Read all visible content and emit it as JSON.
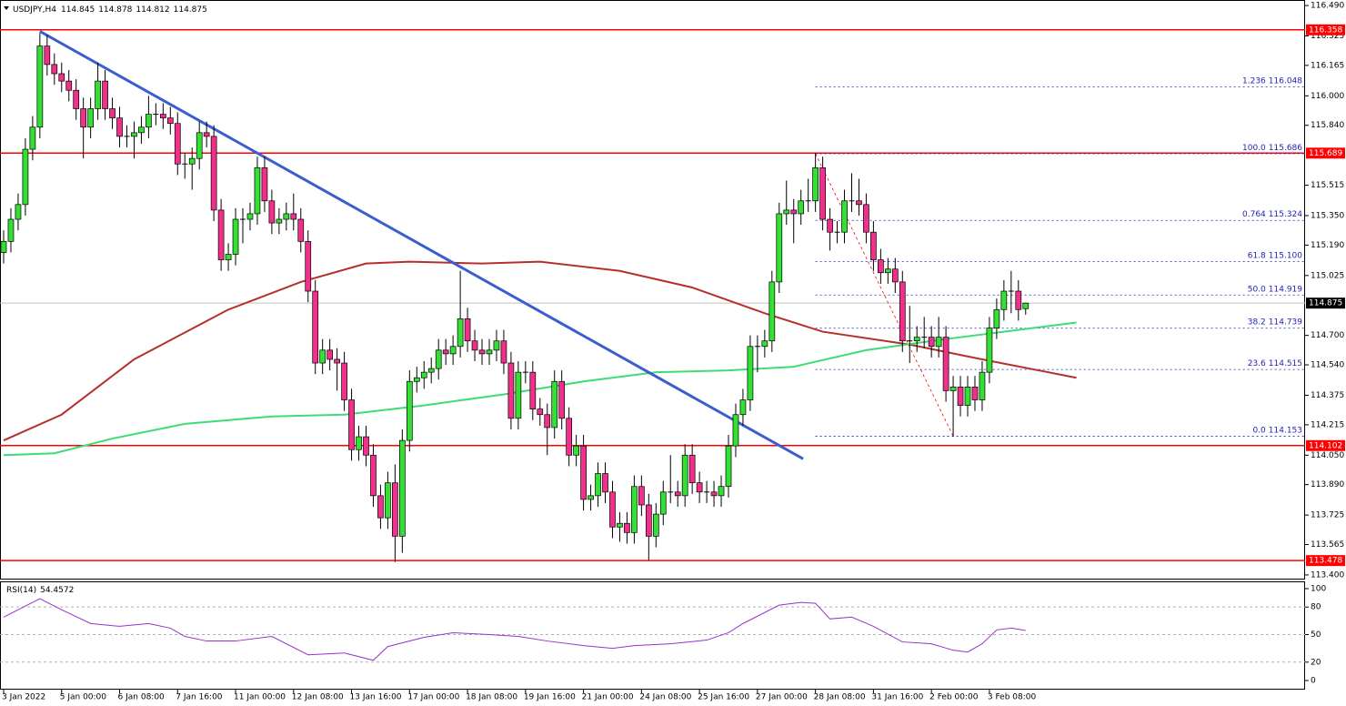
{
  "chart_data": {
    "type": "candlestick",
    "symbol": "USDJPY,H4",
    "up_color": "#33e033",
    "down_color": "#f0308a",
    "ylim": [
      113.38,
      116.515
    ],
    "yticks": [
      {
        "value": 116.49,
        "label": "116.490"
      },
      116.325,
      116.165,
      {
        "value": 116.0,
        "label": "116.000"
      },
      {
        "value": 115.84,
        "label": "115.840"
      },
      115.515,
      {
        "value": 115.35,
        "label": "115.350"
      },
      {
        "value": 115.19,
        "label": "115.190"
      },
      115.025,
      {
        "value": 114.7,
        "label": "114.700"
      },
      {
        "value": 114.54,
        "label": "114.540"
      },
      114.375,
      114.215,
      {
        "value": 114.05,
        "label": "114.050"
      },
      {
        "value": 113.89,
        "label": "113.890"
      },
      113.725,
      113.565,
      {
        "value": 113.4,
        "label": "113.400"
      }
    ],
    "categories": [
      "3 Jan 2022",
      null,
      null,
      null,
      null,
      null,
      null,
      null,
      "5 Jan 00:00",
      null,
      null,
      null,
      null,
      null,
      null,
      null,
      "6 Jan 08:00",
      null,
      null,
      null,
      null,
      null,
      null,
      null,
      "7 Jan 16:00",
      null,
      null,
      null,
      null,
      null,
      null,
      null,
      "11 Jan 00:00",
      null,
      null,
      null,
      null,
      null,
      null,
      null,
      "12 Jan 08:00",
      null,
      null,
      null,
      null,
      null,
      null,
      null,
      "13 Jan 16:00",
      null,
      null,
      null,
      null,
      null,
      null,
      null,
      "17 Jan 00:00",
      null,
      null,
      null,
      null,
      null,
      null,
      null,
      "18 Jan 08:00",
      null,
      null,
      null,
      null,
      null,
      null,
      null,
      "19 Jan 16:00",
      null,
      null,
      null,
      null,
      null,
      null,
      null,
      "21 Jan 00:00",
      null,
      null,
      null,
      null,
      null,
      null,
      null,
      "24 Jan 08:00",
      null,
      null,
      null,
      null,
      null,
      null,
      null,
      "25 Jan 16:00",
      null,
      null,
      null,
      null,
      null,
      null,
      null,
      "27 Jan 00:00",
      null,
      null,
      null,
      null,
      null,
      null,
      null,
      "28 Jan 08:00",
      null,
      null,
      null,
      null,
      null,
      null,
      null,
      "31 Jan 16:00",
      null,
      null,
      null,
      null,
      null,
      null,
      null,
      "2 Feb 00:00",
      null,
      null,
      null,
      null,
      null,
      null,
      null,
      "3 Feb 08:00",
      null,
      null,
      null,
      null,
      null
    ],
    "open": [
      115.15,
      115.21,
      115.33,
      115.41,
      115.71,
      115.83,
      116.27,
      116.17,
      116.12,
      116.08,
      116.03,
      115.93,
      115.83,
      115.93,
      116.08,
      115.93,
      115.88,
      115.78,
      115.78,
      115.8,
      115.83,
      115.9,
      115.9,
      115.88,
      115.85,
      115.63,
      115.63,
      115.66,
      115.8,
      115.78,
      115.38,
      115.11,
      115.14,
      115.33,
      115.33,
      115.36,
      115.61,
      115.43,
      115.31,
      115.33,
      115.36,
      115.33,
      115.21,
      114.94,
      114.55,
      114.62,
      114.57,
      114.55,
      114.35,
      114.08,
      114.15,
      114.05,
      113.83,
      113.71,
      113.9,
      113.61,
      114.13,
      114.45,
      114.47,
      114.5,
      114.52,
      114.62,
      114.6,
      114.64,
      114.79,
      114.67,
      114.62,
      114.6,
      114.62,
      114.67,
      114.55,
      114.25,
      114.5,
      114.5,
      114.3,
      114.27,
      114.2,
      114.45,
      114.25,
      114.05,
      114.1,
      113.81,
      113.83,
      113.95,
      113.85,
      113.66,
      113.68,
      113.63,
      113.88,
      113.78,
      113.61,
      113.73,
      113.85,
      113.85,
      113.83,
      114.05,
      113.9,
      113.85,
      113.85,
      113.83,
      113.88,
      114.1,
      114.27,
      114.35,
      114.64,
      114.64,
      114.67,
      114.99,
      115.36,
      115.38,
      115.36,
      115.43,
      115.43,
      115.61,
      115.33,
      115.26,
      115.26,
      115.43,
      115.43,
      115.41,
      115.26,
      115.11,
      115.04,
      115.06,
      114.99,
      114.67,
      114.67,
      114.69,
      114.69,
      114.64,
      114.69,
      114.4,
      114.42,
      114.32,
      114.42,
      114.35,
      114.5,
      114.74,
      114.84,
      114.94,
      114.94,
      114.845
    ],
    "high": [
      115.27,
      115.39,
      115.47,
      115.77,
      115.89,
      116.34,
      116.33,
      116.23,
      116.18,
      116.14,
      116.09,
      115.99,
      115.99,
      116.18,
      116.14,
      115.99,
      115.94,
      115.84,
      115.86,
      115.89,
      116.0,
      115.96,
      115.96,
      115.94,
      115.91,
      115.69,
      115.72,
      115.86,
      115.86,
      115.84,
      115.44,
      115.2,
      115.39,
      115.39,
      115.42,
      115.67,
      115.67,
      115.49,
      115.39,
      115.42,
      115.47,
      115.39,
      115.27,
      115.0,
      114.68,
      114.68,
      114.63,
      114.61,
      114.41,
      114.21,
      114.21,
      114.11,
      113.89,
      113.96,
      114.0,
      114.19,
      114.51,
      114.53,
      114.56,
      114.58,
      114.68,
      114.68,
      114.7,
      115.05,
      114.85,
      114.73,
      114.68,
      114.68,
      114.73,
      114.73,
      114.61,
      114.56,
      114.56,
      114.56,
      114.36,
      114.33,
      114.51,
      114.51,
      114.31,
      114.16,
      114.16,
      113.89,
      114.01,
      114.01,
      113.91,
      113.74,
      113.74,
      113.94,
      113.94,
      113.84,
      113.79,
      113.91,
      114.05,
      113.91,
      114.11,
      114.11,
      113.96,
      113.91,
      113.91,
      113.94,
      114.16,
      114.33,
      114.41,
      114.7,
      114.7,
      114.73,
      115.05,
      115.42,
      115.54,
      115.44,
      115.49,
      115.55,
      115.69,
      115.67,
      115.39,
      115.32,
      115.49,
      115.58,
      115.55,
      115.47,
      115.32,
      115.17,
      115.12,
      115.12,
      115.05,
      114.86,
      114.75,
      114.8,
      114.75,
      114.8,
      114.75,
      114.48,
      114.48,
      114.48,
      114.48,
      114.56,
      114.8,
      114.9,
      115.0,
      115.05,
      115.0,
      114.878
    ],
    "low": [
      115.09,
      115.15,
      115.27,
      115.35,
      115.65,
      115.77,
      116.11,
      116.06,
      116.02,
      115.97,
      115.87,
      115.66,
      115.77,
      115.87,
      115.87,
      115.82,
      115.72,
      115.72,
      115.66,
      115.74,
      115.77,
      115.84,
      115.82,
      115.79,
      115.57,
      115.55,
      115.49,
      115.6,
      115.72,
      115.32,
      115.05,
      115.05,
      115.08,
      115.2,
      115.27,
      115.3,
      115.37,
      115.25,
      115.25,
      115.27,
      115.27,
      115.15,
      114.88,
      114.49,
      114.49,
      114.51,
      114.4,
      114.29,
      114.02,
      114.02,
      113.99,
      113.77,
      113.65,
      113.65,
      113.47,
      113.52,
      114.07,
      114.39,
      114.41,
      114.44,
      114.46,
      114.54,
      114.54,
      114.58,
      114.61,
      114.56,
      114.54,
      114.54,
      114.56,
      114.49,
      114.19,
      114.19,
      114.44,
      114.24,
      114.21,
      114.05,
      114.14,
      114.19,
      113.99,
      113.99,
      113.75,
      113.75,
      113.77,
      113.79,
      113.6,
      113.58,
      113.57,
      113.57,
      113.72,
      113.48,
      113.55,
      113.67,
      113.79,
      113.77,
      113.77,
      113.84,
      113.79,
      113.79,
      113.77,
      113.77,
      113.82,
      114.04,
      114.21,
      114.29,
      114.5,
      114.58,
      114.61,
      114.93,
      115.3,
      115.2,
      115.3,
      115.37,
      115.37,
      115.27,
      115.16,
      115.2,
      115.2,
      115.37,
      115.35,
      115.2,
      115.05,
      114.98,
      114.98,
      114.93,
      114.61,
      114.55,
      114.61,
      114.63,
      114.58,
      114.58,
      114.34,
      114.15,
      114.26,
      114.26,
      114.29,
      114.29,
      114.44,
      114.68,
      114.78,
      114.82,
      114.78,
      114.812
    ],
    "close": [
      115.21,
      115.33,
      115.41,
      115.71,
      115.83,
      116.27,
      116.17,
      116.12,
      116.08,
      116.03,
      115.93,
      115.83,
      115.93,
      116.08,
      115.93,
      115.88,
      115.78,
      115.78,
      115.8,
      115.83,
      115.9,
      115.9,
      115.88,
      115.85,
      115.63,
      115.63,
      115.66,
      115.8,
      115.78,
      115.38,
      115.11,
      115.14,
      115.33,
      115.33,
      115.36,
      115.61,
      115.43,
      115.31,
      115.33,
      115.36,
      115.33,
      115.21,
      114.94,
      114.55,
      114.62,
      114.57,
      114.55,
      114.35,
      114.08,
      114.15,
      114.05,
      113.83,
      113.71,
      113.9,
      113.61,
      114.13,
      114.45,
      114.47,
      114.5,
      114.52,
      114.62,
      114.6,
      114.64,
      114.79,
      114.67,
      114.62,
      114.6,
      114.62,
      114.67,
      114.55,
      114.25,
      114.5,
      114.5,
      114.3,
      114.27,
      114.2,
      114.45,
      114.25,
      114.05,
      114.1,
      113.81,
      113.83,
      113.95,
      113.85,
      113.66,
      113.68,
      113.63,
      113.88,
      113.78,
      113.61,
      113.73,
      113.85,
      113.85,
      113.83,
      114.05,
      113.9,
      113.85,
      113.85,
      113.83,
      113.88,
      114.1,
      114.27,
      114.35,
      114.64,
      114.64,
      114.67,
      114.99,
      115.36,
      115.38,
      115.36,
      115.43,
      115.43,
      115.61,
      115.33,
      115.26,
      115.26,
      115.43,
      115.43,
      115.41,
      115.26,
      115.11,
      115.04,
      115.06,
      114.99,
      114.67,
      114.67,
      114.69,
      114.69,
      114.64,
      114.69,
      114.4,
      114.42,
      114.32,
      114.42,
      114.35,
      114.5,
      114.74,
      114.84,
      114.94,
      114.94,
      114.84,
      114.875
    ],
    "hlines": {
      "color": "#ff0000",
      "values": [
        116.358,
        115.689,
        114.102,
        113.478
      ]
    },
    "moving_averages": [
      {
        "color": "#b5302c",
        "x": [
          0,
          8,
          18,
          31,
          41,
          50,
          56,
          66,
          74,
          85,
          95,
          105,
          113,
          125,
          135,
          148
        ],
        "values": [
          114.13,
          114.27,
          114.57,
          114.84,
          114.99,
          115.09,
          115.1,
          115.09,
          115.1,
          115.05,
          114.96,
          114.82,
          114.72,
          114.65,
          114.57,
          114.47
        ]
      },
      {
        "color": "#3ddc77",
        "x": [
          0,
          7,
          15,
          25,
          37,
          47,
          58,
          69,
          80,
          90,
          100,
          109,
          119,
          130,
          138,
          148
        ],
        "values": [
          114.05,
          114.06,
          114.14,
          114.22,
          114.26,
          114.27,
          114.32,
          114.38,
          114.45,
          114.5,
          114.51,
          114.53,
          114.62,
          114.68,
          114.72,
          114.77
        ]
      }
    ],
    "trendline": {
      "color": "#3a5fcd",
      "x": [
        5,
        110.3
      ],
      "values": [
        116.35,
        114.03
      ]
    },
    "fibonacci": {
      "color": "#2323b8",
      "line_color": "#ff0000",
      "x": [
        112,
        131
      ],
      "values": [
        115.686,
        114.153
      ],
      "levels": [
        {
          "ratio": "1.236",
          "price": 116.048
        },
        {
          "ratio": "100.0",
          "price": 115.686
        },
        {
          "ratio": "0.764",
          "price": 115.324
        },
        {
          "ratio": "61.8",
          "price": {
            "value": 115.1,
            "label": "115.100"
          }
        },
        {
          "ratio": "50.0",
          "price": 114.919
        },
        {
          "ratio": "38.2",
          "price": 114.739
        },
        {
          "ratio": "23.6",
          "price": 114.515
        },
        {
          "ratio": "0.0",
          "price": 114.153
        }
      ]
    },
    "rsi": {
      "label": "RSI(14)",
      "color": "#9932cc",
      "ylim": [
        -8.9,
        106.9
      ],
      "yticks": [
        100,
        80,
        50,
        20,
        0
      ],
      "levels": [
        80,
        50,
        20
      ],
      "x": [
        0,
        5,
        8,
        12,
        16,
        20,
        23,
        25,
        28,
        32,
        37,
        42,
        47,
        51,
        53,
        58,
        62,
        67,
        71,
        75,
        80,
        84,
        87,
        92,
        97,
        100,
        102,
        107,
        110,
        112,
        114,
        117,
        120,
        124,
        128,
        131,
        133,
        135,
        137,
        139,
        141
      ],
      "values": [
        69,
        89,
        77,
        62,
        59,
        62,
        57,
        48,
        43,
        43,
        48,
        28,
        30,
        22,
        37,
        47,
        52,
        50,
        48,
        43,
        38,
        35,
        38,
        40,
        44,
        52,
        62,
        82,
        85,
        84,
        67,
        69,
        59,
        42,
        40,
        33,
        31,
        40,
        55,
        57,
        54.4572
      ]
    }
  }
}
